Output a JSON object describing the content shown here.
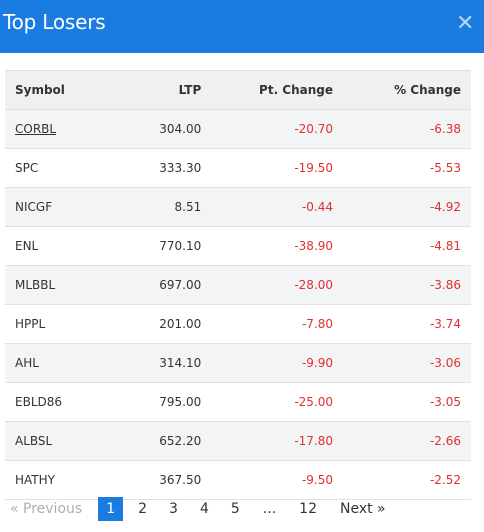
{
  "modal": {
    "title": "Top Losers",
    "close_glyph": "✕"
  },
  "table": {
    "columns": [
      "Symbol",
      "LTP",
      "Pt. Change",
      "% Change"
    ],
    "rows": [
      {
        "symbol": "CORBL",
        "ltp": "304.00",
        "pt_change": "-20.70",
        "pct_change": "-6.38"
      },
      {
        "symbol": "SPC",
        "ltp": "333.30",
        "pt_change": "-19.50",
        "pct_change": "-5.53"
      },
      {
        "symbol": "NICGF",
        "ltp": "8.51",
        "pt_change": "-0.44",
        "pct_change": "-4.92"
      },
      {
        "symbol": "ENL",
        "ltp": "770.10",
        "pt_change": "-38.90",
        "pct_change": "-4.81"
      },
      {
        "symbol": "MLBBL",
        "ltp": "697.00",
        "pt_change": "-28.00",
        "pct_change": "-3.86"
      },
      {
        "symbol": "HPPL",
        "ltp": "201.00",
        "pt_change": "-7.80",
        "pct_change": "-3.74"
      },
      {
        "symbol": "AHL",
        "ltp": "314.10",
        "pt_change": "-9.90",
        "pct_change": "-3.06"
      },
      {
        "symbol": "EBLD86",
        "ltp": "795.00",
        "pt_change": "-25.00",
        "pct_change": "-3.05"
      },
      {
        "symbol": "ALBSL",
        "ltp": "652.20",
        "pt_change": "-17.80",
        "pct_change": "-2.66"
      },
      {
        "symbol": "HATHY",
        "ltp": "367.50",
        "pt_change": "-9.50",
        "pct_change": "-2.52"
      }
    ]
  },
  "pagination": {
    "previous": "« Previous",
    "pages": [
      "1",
      "2",
      "3",
      "4",
      "5"
    ],
    "ellipsis": "...",
    "last_page": "12",
    "next": "Next »",
    "active_page": "1"
  },
  "colors": {
    "header": "#1a7be0",
    "negative": "#e03030"
  }
}
